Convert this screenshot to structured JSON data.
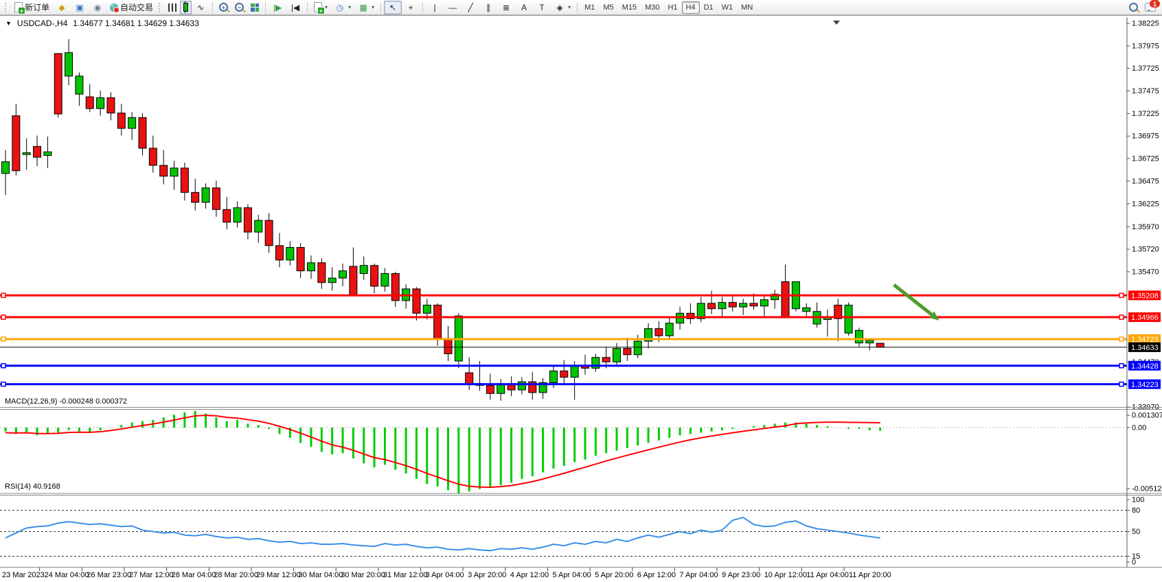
{
  "window": {
    "symbol_period": "USDCAD-,H4",
    "ohlc_line": "1.34677 1.34681 1.34629 1.34633"
  },
  "toolbar": {
    "new_order_label": "新订单",
    "auto_trading_label": "自动交易",
    "timeframes": [
      "M1",
      "M5",
      "M15",
      "M30",
      "H1",
      "H4",
      "D1",
      "W1",
      "MN"
    ],
    "selected_timeframe": "H4",
    "notification_badge": "1",
    "icons": {
      "wallet": "◆",
      "terminal": "▣",
      "signals": "◉",
      "line_chart": "∿",
      "shift_forward": "|▶",
      "shift_end": "|◀",
      "clock": "◷",
      "template": "▦",
      "cursor": "↖",
      "crosshair": "+",
      "vline": "|",
      "hline": "—",
      "trendline": "╱",
      "channel": "∥",
      "fibonacci": "≣",
      "text": "A",
      "text_label": "T",
      "arrows": "◈",
      "caret": "▾"
    }
  },
  "indicators": {
    "macd_label": "MACD(12,26,9) -0.000248 0.000372",
    "rsi_label": "RSI(14) 40.9168"
  },
  "chart_data": {
    "type": "candlestick",
    "symbol": "USDCAD",
    "timeframe": "H4",
    "current_bar": {
      "open": 1.34677,
      "high": 1.34681,
      "low": 1.34629,
      "close": 1.34633
    },
    "colors": {
      "bull": "#00c400",
      "bear": "#e81212",
      "wick": "#000000",
      "macd_bar": "#00cc00",
      "macd_signal": "#ff0000",
      "rsi_line": "#3b8eea",
      "level_red": "#ff0000",
      "level_orange": "#ffa500",
      "level_blue": "#0000ff",
      "current_price": "#000000",
      "arrow_green": "#4f9d2d"
    },
    "y_axis_ticks": [
      1.38225,
      1.37975,
      1.37725,
      1.37475,
      1.37225,
      1.36975,
      1.36725,
      1.36475,
      1.36225,
      1.3597,
      1.3572,
      1.3547,
      1.3447,
      1.3397
    ],
    "x_axis_labels": [
      "23 Mar 2023",
      "24 Mar 04:00",
      "26 Mar 23:00",
      "27 Mar 12:00",
      "28 Mar 04:00",
      "28 Mar 20:00",
      "29 Mar 12:00",
      "30 Mar 04:00",
      "30 Mar 20:00",
      "31 Mar 12:00",
      "3 Apr 04:00",
      "3 Apr 20:00",
      "4 Apr 12:00",
      "5 Apr 04:00",
      "5 Apr 20:00",
      "6 Apr 12:00",
      "7 Apr 04:00",
      "9 Apr 23:00",
      "10 Apr 12:00",
      "11 Apr 04:00",
      "11 Apr 20:00"
    ],
    "hlines": [
      {
        "price": 1.35208,
        "label": "1.35208",
        "color": "#ff0000",
        "width": 3
      },
      {
        "price": 1.34966,
        "label": "1.34966",
        "color": "#ff0000",
        "width": 3
      },
      {
        "price": 1.34723,
        "label": "1.34723",
        "color": "#ffa500",
        "width": 3
      },
      {
        "price": 1.34633,
        "label": "1.34633",
        "color": "#000000",
        "width": 1,
        "role": "current-price"
      },
      {
        "price": 1.34428,
        "label": "1.34428",
        "color": "#0000ff",
        "width": 3
      },
      {
        "price": 1.34223,
        "label": "1.34223",
        "color": "#0000ff",
        "width": 3
      }
    ],
    "arrow_annotation": {
      "from_bar": 84.3,
      "from_price": 1.35325,
      "to_bar": 88.6,
      "to_price": 1.3493
    },
    "candles": [
      [
        1.3656,
        1.3682,
        1.3632,
        1.3669
      ],
      [
        1.372,
        1.3733,
        1.3654,
        1.3659
      ],
      [
        1.3677,
        1.3695,
        1.366,
        1.3679
      ],
      [
        1.3686,
        1.3698,
        1.3664,
        1.3674
      ],
      [
        1.3676,
        1.3697,
        1.3662,
        1.368
      ],
      [
        1.3789,
        1.3789,
        1.3718,
        1.3722
      ],
      [
        1.3764,
        1.3805,
        1.3754,
        1.379
      ],
      [
        1.3744,
        1.3768,
        1.3731,
        1.3764
      ],
      [
        1.3741,
        1.3755,
        1.3724,
        1.3728
      ],
      [
        1.3728,
        1.3748,
        1.372,
        1.374
      ],
      [
        1.374,
        1.3746,
        1.3715,
        1.3723
      ],
      [
        1.3723,
        1.3733,
        1.3698,
        1.3706
      ],
      [
        1.3706,
        1.3724,
        1.3693,
        1.3718
      ],
      [
        1.3718,
        1.3723,
        1.3676,
        1.3684
      ],
      [
        1.3684,
        1.3698,
        1.3657,
        1.3665
      ],
      [
        1.3665,
        1.3682,
        1.3644,
        1.3653
      ],
      [
        1.3653,
        1.367,
        1.3638,
        1.3662
      ],
      [
        1.3662,
        1.3668,
        1.3626,
        1.3635
      ],
      [
        1.3635,
        1.365,
        1.3615,
        1.3624
      ],
      [
        1.3624,
        1.3645,
        1.3617,
        1.364
      ],
      [
        1.364,
        1.3648,
        1.3608,
        1.3616
      ],
      [
        1.3616,
        1.363,
        1.3594,
        1.3602
      ],
      [
        1.3602,
        1.3625,
        1.3596,
        1.3618
      ],
      [
        1.3618,
        1.3622,
        1.3583,
        1.3591
      ],
      [
        1.3591,
        1.361,
        1.3579,
        1.3604
      ],
      [
        1.3604,
        1.3612,
        1.3568,
        1.3576
      ],
      [
        1.3576,
        1.359,
        1.3552,
        1.356
      ],
      [
        1.356,
        1.3581,
        1.3554,
        1.3574
      ],
      [
        1.3574,
        1.3579,
        1.354,
        1.3548
      ],
      [
        1.3548,
        1.3565,
        1.3539,
        1.3557
      ],
      [
        1.3557,
        1.3562,
        1.3528,
        1.3535
      ],
      [
        1.3535,
        1.3552,
        1.3526,
        1.354
      ],
      [
        1.354,
        1.3556,
        1.3531,
        1.3548
      ],
      [
        1.3553,
        1.3574,
        1.352,
        1.3521
      ],
      [
        1.3545,
        1.3564,
        1.3538,
        1.3554
      ],
      [
        1.3554,
        1.3556,
        1.3523,
        1.3531
      ],
      [
        1.3531,
        1.3551,
        1.3525,
        1.3545
      ],
      [
        1.3545,
        1.3547,
        1.3508,
        1.3515
      ],
      [
        1.3515,
        1.3533,
        1.3506,
        1.3528
      ],
      [
        1.3528,
        1.353,
        1.3493,
        1.3501
      ],
      [
        1.3501,
        1.3517,
        1.3494,
        1.351
      ],
      [
        1.351,
        1.3512,
        1.3465,
        1.3473
      ],
      [
        1.3473,
        1.3487,
        1.3448,
        1.3456
      ],
      [
        1.3448,
        1.3501,
        1.344,
        1.3498
      ],
      [
        1.3435,
        1.3452,
        1.3416,
        1.3423
      ],
      [
        1.3423,
        1.3448,
        1.3415,
        1.3421
      ],
      [
        1.3421,
        1.3434,
        1.3405,
        1.3412
      ],
      [
        1.3412,
        1.3428,
        1.3404,
        1.3423
      ],
      [
        1.3423,
        1.3431,
        1.3409,
        1.3416
      ],
      [
        1.3416,
        1.343,
        1.3411,
        1.3425
      ],
      [
        1.3425,
        1.3436,
        1.3405,
        1.3413
      ],
      [
        1.3413,
        1.3429,
        1.3406,
        1.3424
      ],
      [
        1.3424,
        1.3442,
        1.3418,
        1.3437
      ],
      [
        1.3437,
        1.3449,
        1.3423,
        1.343
      ],
      [
        1.343,
        1.3448,
        1.3405,
        1.3443
      ],
      [
        1.3443,
        1.3455,
        1.3433,
        1.344
      ],
      [
        1.344,
        1.3456,
        1.3436,
        1.3452
      ],
      [
        1.3452,
        1.3464,
        1.344,
        1.3447
      ],
      [
        1.3447,
        1.3468,
        1.3444,
        1.3462
      ],
      [
        1.3462,
        1.3474,
        1.3448,
        1.3455
      ],
      [
        1.3455,
        1.3477,
        1.3451,
        1.347
      ],
      [
        1.347,
        1.349,
        1.3462,
        1.3484
      ],
      [
        1.3484,
        1.3492,
        1.3469,
        1.3476
      ],
      [
        1.3476,
        1.3496,
        1.3472,
        1.349
      ],
      [
        1.349,
        1.3508,
        1.3483,
        1.3501
      ],
      [
        1.3501,
        1.3512,
        1.3489,
        1.3495
      ],
      [
        1.3495,
        1.3519,
        1.3491,
        1.3512
      ],
      [
        1.3512,
        1.3526,
        1.35,
        1.3506
      ],
      [
        1.3506,
        1.3519,
        1.3496,
        1.3513
      ],
      [
        1.3513,
        1.3521,
        1.3503,
        1.3508
      ],
      [
        1.3508,
        1.3517,
        1.3499,
        1.3512
      ],
      [
        1.3512,
        1.3523,
        1.3505,
        1.3509
      ],
      [
        1.3509,
        1.352,
        1.3496,
        1.3516
      ],
      [
        1.3516,
        1.3527,
        1.3506,
        1.3522
      ],
      [
        1.3536,
        1.3555,
        1.3496,
        1.3497
      ],
      [
        1.3506,
        1.3531,
        1.3503,
        1.3536
      ],
      [
        1.3503,
        1.3512,
        1.3498,
        1.3507
      ],
      [
        1.3489,
        1.3513,
        1.3485,
        1.3503
      ],
      [
        1.3494,
        1.3505,
        1.3475,
        1.3496
      ],
      [
        1.351,
        1.3517,
        1.347,
        1.3495
      ],
      [
        1.3479,
        1.3513,
        1.3476,
        1.351
      ],
      [
        1.3468,
        1.3485,
        1.3464,
        1.3482
      ],
      [
        1.3468,
        1.3473,
        1.346,
        1.3471
      ],
      [
        1.34677,
        1.34681,
        1.34629,
        1.34633
      ]
    ],
    "macd": {
      "params": "12,26,9",
      "current_main": -0.000248,
      "current_signal": 0.000372,
      "scale_labels": [
        "0.001307",
        "0.00",
        "-0.005123"
      ],
      "main": [
        -0.0003,
        -0.0005,
        -0.0004,
        -0.0006,
        -0.0005,
        -0.0004,
        -0.0002,
        -0.0003,
        -0.0004,
        -0.0002,
        0.0,
        0.0002,
        0.0004,
        0.0005,
        0.0006,
        0.0008,
        0.001,
        0.0012,
        0.0013,
        0.0011,
        0.0008,
        0.0005,
        0.0006,
        0.0003,
        0.0002,
        -0.0001,
        -0.0005,
        -0.0008,
        -0.0012,
        -0.0015,
        -0.0019,
        -0.0021,
        -0.002,
        -0.0024,
        -0.0028,
        -0.0031,
        -0.0029,
        -0.0033,
        -0.0036,
        -0.004,
        -0.0044,
        -0.0046,
        -0.0049,
        -0.005123,
        -0.005,
        -0.0048,
        -0.0047,
        -0.0045,
        -0.0043,
        -0.004,
        -0.0038,
        -0.0035,
        -0.0032,
        -0.003,
        -0.0027,
        -0.0025,
        -0.0022,
        -0.002,
        -0.0018,
        -0.0016,
        -0.0014,
        -0.0012,
        -0.001,
        -0.0008,
        -0.0006,
        -0.0005,
        -0.0004,
        -0.0003,
        -0.0002,
        -0.0001,
        0.0,
        0.0001,
        0.0002,
        0.0003,
        0.0004,
        0.0004,
        0.0003,
        0.0002,
        0.0001,
        0.0,
        -0.0001,
        -0.0001,
        -0.0002,
        -0.000248
      ],
      "signal": [
        -0.0004,
        -0.00042,
        -0.00041,
        -0.00046,
        -0.00047,
        -0.00045,
        -0.00038,
        -0.00036,
        -0.00037,
        -0.00032,
        -0.00023,
        -0.00011,
        3e-05,
        0.00016,
        0.00028,
        0.00043,
        0.00059,
        0.00076,
        0.00091,
        0.00096,
        0.00092,
        0.0008,
        0.00074,
        0.00062,
        0.0005,
        0.00033,
        0.0001,
        -0.00015,
        -0.00044,
        -0.00074,
        -0.00106,
        -0.00135,
        -0.00153,
        -0.00177,
        -0.00206,
        -0.00235,
        -0.0025,
        -0.00273,
        -0.00297,
        -0.00326,
        -0.00358,
        -0.00386,
        -0.00415,
        -0.00442,
        -0.00458,
        -0.00464,
        -0.00466,
        -0.00461,
        -0.00453,
        -0.00438,
        -0.00422,
        -0.00402,
        -0.00379,
        -0.00357,
        -0.00333,
        -0.0031,
        -0.00285,
        -0.00261,
        -0.00238,
        -0.00216,
        -0.00195,
        -0.00174,
        -0.00153,
        -0.00133,
        -0.00113,
        -0.00095,
        -0.0008,
        -0.00066,
        -0.00053,
        -0.00041,
        -0.00029,
        -0.00018,
        -7e-05,
        4e-05,
        0.00014,
        0.0003,
        0.00036,
        0.0004,
        0.00042,
        0.00042,
        0.00041,
        0.0004,
        0.00039,
        0.000372
      ]
    },
    "rsi": {
      "period": 14,
      "current_value": 40.9168,
      "levels": [
        80,
        50,
        15
      ],
      "scale_labels": [
        "100",
        "80",
        "50",
        "15",
        "0"
      ],
      "values": [
        41,
        48,
        55,
        57,
        58,
        62,
        64,
        62,
        60,
        61,
        59,
        57,
        58,
        52,
        50,
        48,
        49,
        45,
        44,
        46,
        43,
        41,
        42,
        39,
        40,
        37,
        35,
        36,
        33,
        34,
        32,
        32,
        33,
        31,
        30,
        29,
        33,
        31,
        32,
        29,
        27,
        28,
        25,
        24,
        26,
        24,
        23,
        26,
        25,
        27,
        25,
        28,
        32,
        30,
        34,
        32,
        36,
        34,
        39,
        36,
        41,
        45,
        42,
        46,
        50,
        47,
        52,
        49,
        52,
        66,
        70,
        60,
        57,
        58,
        63,
        65,
        58,
        54,
        52,
        50,
        48,
        45,
        43,
        40.92
      ]
    }
  }
}
